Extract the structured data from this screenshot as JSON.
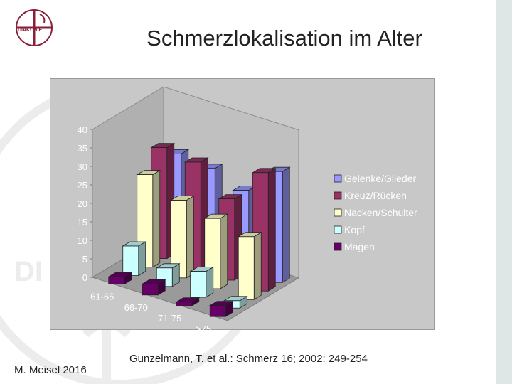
{
  "slide": {
    "title": "Schmerzlokalisation im Alter",
    "author": "M. Meisel 2016",
    "citation": "Gunzelmann, T. et al.: Schmerz 16; 2002: 249-254",
    "logo_text": "DIAKONIE"
  },
  "chart_data": {
    "type": "bar",
    "subtype": "3d-clustered-column",
    "title": "",
    "xlabel": "",
    "ylabel": "",
    "ylim": [
      0,
      40
    ],
    "yticks": [
      0,
      5,
      10,
      15,
      20,
      25,
      30,
      35,
      40
    ],
    "grid": false,
    "legend_position": "right",
    "categories": [
      "61-65",
      "66-70",
      "71-75",
      ">75"
    ],
    "series": [
      {
        "name": "Gelenke/Glieder",
        "values": [
          26,
          25,
          22,
          30
        ],
        "color": "#9999ff"
      },
      {
        "name": "Kreuz/Rücken",
        "values": [
          30,
          29,
          22,
          32
        ],
        "color": "#993366"
      },
      {
        "name": "Nacken/Schulter",
        "values": [
          25,
          21,
          19,
          17
        ],
        "color": "#ffffcc"
      },
      {
        "name": "Kopf",
        "values": [
          8,
          5,
          7,
          2
        ],
        "color": "#ccffff"
      },
      {
        "name": "Magen",
        "values": [
          2,
          3,
          1,
          3
        ],
        "color": "#660066"
      }
    ]
  }
}
